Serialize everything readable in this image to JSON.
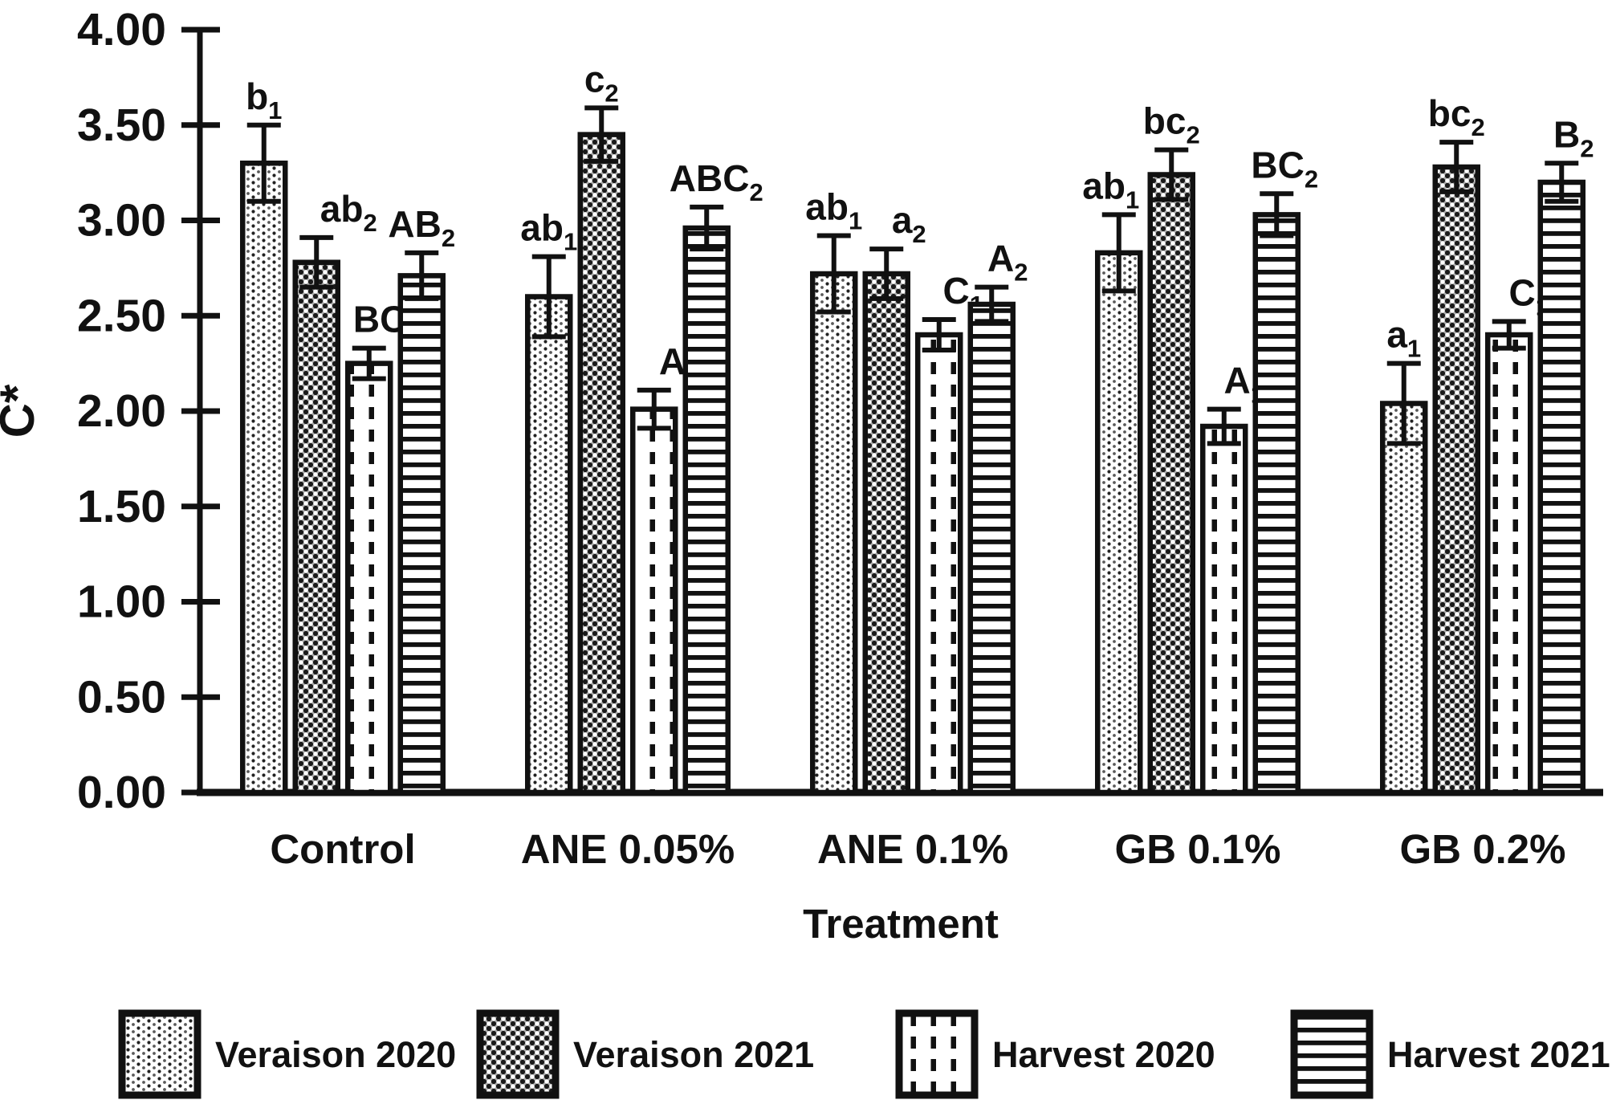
{
  "figure": {
    "background": "#ffffff",
    "text_color": "#111111",
    "bar_outline_color": "#111111"
  },
  "chart_data": {
    "type": "bar",
    "title": "",
    "xlabel": "Treatment",
    "ylabel": "C*",
    "ylim": [
      0,
      4
    ],
    "ytick_step": 0.5,
    "yticks": [
      "0.00",
      "0.50",
      "1.00",
      "1.50",
      "2.00",
      "2.50",
      "3.00",
      "3.50",
      "4.00"
    ],
    "categories": [
      "Control",
      "ANE 0.05%",
      "ANE 0.1%",
      "GB 0.1%",
      "GB 0.2%"
    ],
    "grid": false,
    "legend_position": "bottom",
    "error_bars": true,
    "series": [
      {
        "name": "Veraison 2020",
        "pattern": "dots-light",
        "values": [
          3.3,
          2.6,
          2.72,
          2.83,
          2.04
        ],
        "errors": [
          0.2,
          0.21,
          0.2,
          0.2,
          0.21
        ],
        "sig_labels": [
          {
            "t": "b",
            "s": "1"
          },
          {
            "t": "ab",
            "s": "1"
          },
          {
            "t": "ab",
            "s": "1"
          },
          {
            "t": "ab",
            "s": "1"
          },
          {
            "t": "a",
            "s": "1"
          }
        ],
        "label_dx": [
          0,
          0,
          0,
          -10,
          0
        ]
      },
      {
        "name": "Veraison 2021",
        "pattern": "dots-dense",
        "values": [
          2.78,
          3.45,
          2.72,
          3.24,
          3.28
        ],
        "errors": [
          0.13,
          0.14,
          0.13,
          0.13,
          0.13
        ],
        "sig_labels": [
          {
            "t": "ab",
            "s": "2"
          },
          {
            "t": "c",
            "s": "2"
          },
          {
            "t": "a",
            "s": "2"
          },
          {
            "t": "bc",
            "s": "2"
          },
          {
            "t": "bc",
            "s": "2"
          }
        ],
        "label_dx": [
          40,
          0,
          28,
          0,
          0
        ]
      },
      {
        "name": "Harvest 2020",
        "pattern": "dashed-vertical",
        "values": [
          2.25,
          2.01,
          2.4,
          1.92,
          2.4
        ],
        "errors": [
          0.08,
          0.1,
          0.08,
          0.09,
          0.07
        ],
        "sig_labels": [
          {
            "t": "BC",
            "s": "1"
          },
          {
            "t": "AB",
            "s": "1"
          },
          {
            "t": "C",
            "s": "1"
          },
          {
            "t": "A",
            "s": "1"
          },
          {
            "t": "C",
            "s": "1"
          }
        ],
        "label_dx": [
          22,
          48,
          30,
          25,
          25
        ]
      },
      {
        "name": "Harvest 2021",
        "pattern": "h-stripes",
        "values": [
          2.71,
          2.96,
          2.56,
          3.03,
          3.2
        ],
        "errors": [
          0.12,
          0.11,
          0.09,
          0.11,
          0.1
        ],
        "sig_labels": [
          {
            "t": "AB",
            "s": "2"
          },
          {
            "t": "ABC",
            "s": "2"
          },
          {
            "t": "A",
            "s": "2"
          },
          {
            "t": "BC",
            "s": "2"
          },
          {
            "t": "B",
            "s": "2"
          }
        ],
        "label_dx": [
          0,
          12,
          20,
          10,
          15
        ]
      }
    ]
  }
}
